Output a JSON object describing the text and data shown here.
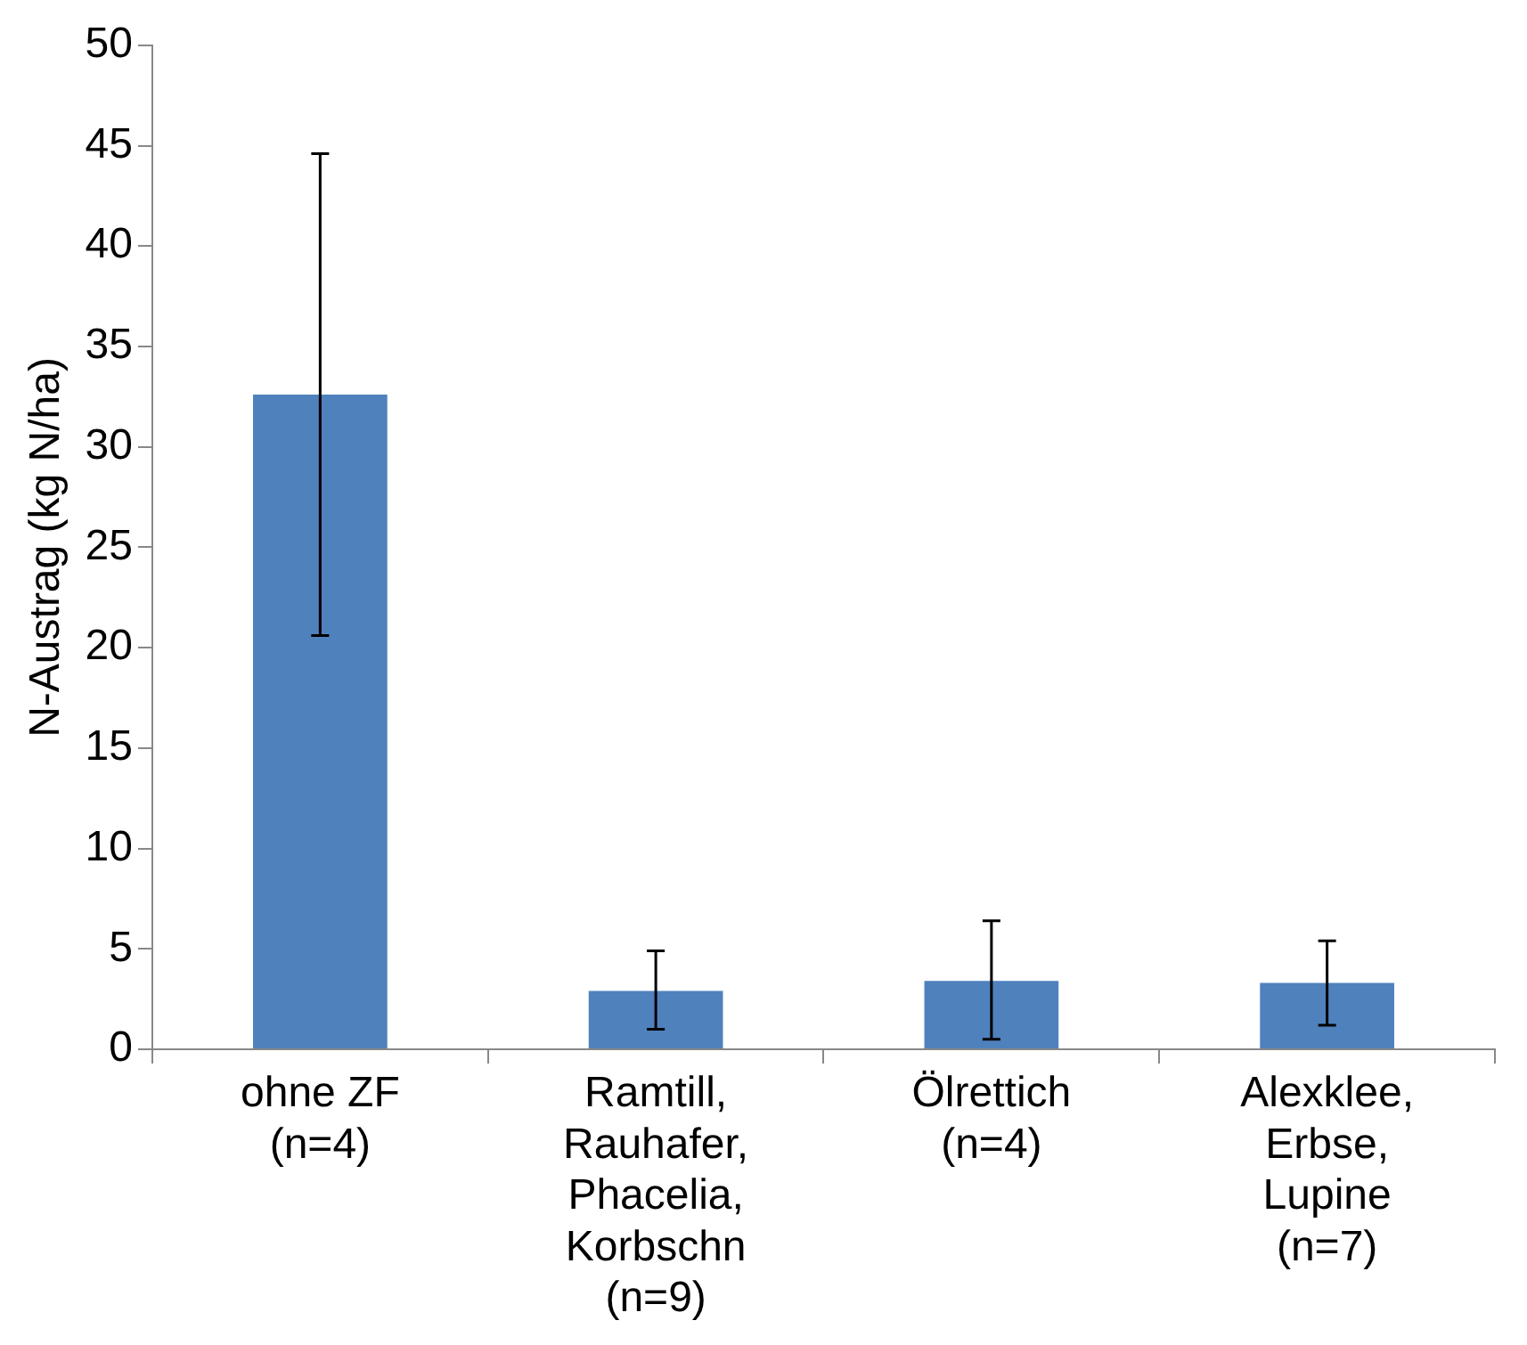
{
  "chart_data": {
    "type": "bar",
    "ylabel": "N-Austrag (kg N/ha)",
    "categories": [
      "ohne ZF (n=4)",
      "Ramtill, Rauhafer, Phacelia, Korbschn (n=9)",
      "Ölrettich (n=4)",
      "Alexklee, Erbse, Lupine (n=7)"
    ],
    "values": [
      32.6,
      2.9,
      3.4,
      3.3
    ],
    "errors": [
      [
        20.6,
        44.6
      ],
      [
        1.0,
        4.9
      ],
      [
        0.5,
        6.4
      ],
      [
        1.2,
        5.4
      ]
    ],
    "color": "#4f81bd",
    "ylim": [
      0,
      50
    ],
    "yticks": [
      0,
      5,
      10,
      15,
      20,
      25,
      30,
      35,
      40,
      45,
      50
    ],
    "grid": false,
    "legend": false
  }
}
